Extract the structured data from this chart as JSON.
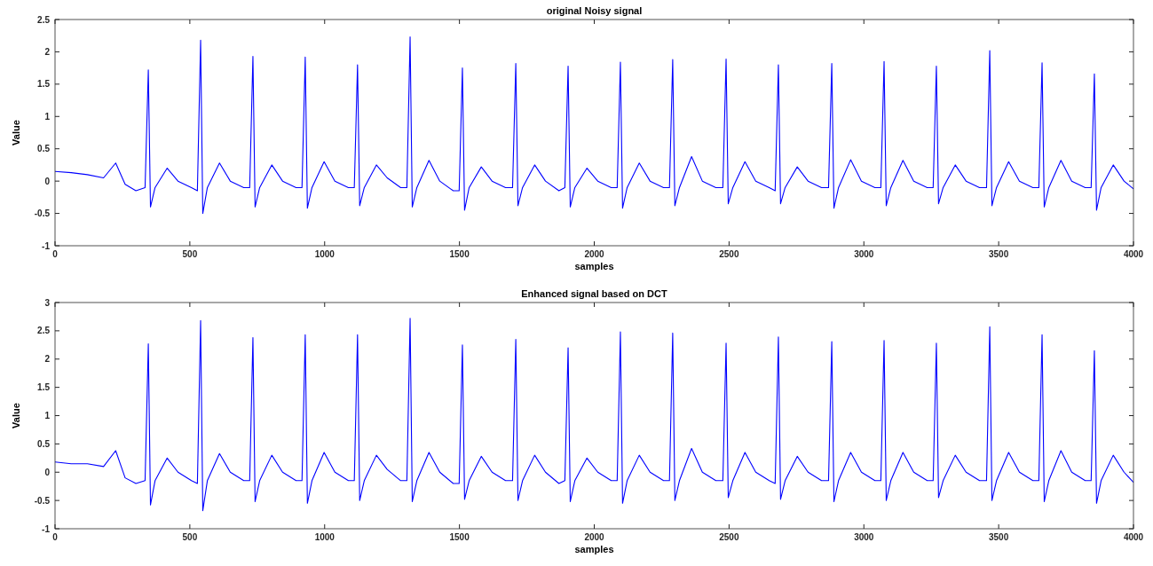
{
  "chart_data": [
    {
      "type": "line",
      "title": "original Noisy signal",
      "xlabel": "samples",
      "ylabel": "Value",
      "xlim": [
        0,
        4000
      ],
      "xticks": [
        0,
        500,
        1000,
        1500,
        2000,
        2500,
        3000,
        3500,
        4000
      ],
      "ylim": [
        -1,
        2.5
      ],
      "yticks": [
        -1,
        -0.5,
        0,
        0.5,
        1,
        1.5,
        2,
        2.5
      ],
      "grid": false,
      "marker": "none",
      "line_style": "solid",
      "x": [
        0,
        60,
        120,
        180,
        225,
        260,
        300,
        334,
        346,
        354,
        371,
        416,
        456,
        506,
        528,
        540,
        548,
        565,
        610,
        650,
        700,
        722,
        734,
        742,
        759,
        804,
        844,
        894,
        916,
        928,
        936,
        953,
        998,
        1038,
        1088,
        1110,
        1122,
        1130,
        1147,
        1192,
        1232,
        1282,
        1305,
        1317,
        1325,
        1342,
        1387,
        1427,
        1477,
        1499,
        1511,
        1519,
        1536,
        1581,
        1621,
        1671,
        1697,
        1709,
        1717,
        1734,
        1779,
        1819,
        1869,
        1891,
        1903,
        1911,
        1928,
        1973,
        2013,
        2063,
        2085,
        2097,
        2105,
        2122,
        2167,
        2207,
        2257,
        2279,
        2291,
        2299,
        2316,
        2361,
        2401,
        2451,
        2477,
        2489,
        2497,
        2514,
        2559,
        2599,
        2649,
        2671,
        2683,
        2691,
        2708,
        2753,
        2793,
        2843,
        2869,
        2881,
        2889,
        2906,
        2951,
        2991,
        3041,
        3063,
        3075,
        3083,
        3100,
        3145,
        3185,
        3235,
        3257,
        3269,
        3277,
        3294,
        3339,
        3379,
        3429,
        3455,
        3467,
        3475,
        3492,
        3537,
        3577,
        3627,
        3649,
        3661,
        3669,
        3686,
        3731,
        3771,
        3821,
        3843,
        3855,
        3863,
        3880,
        3925,
        3965,
        4000
      ],
      "series": [
        {
          "color": "#0000ff",
          "values": [
            0.15,
            0.13,
            0.1,
            0.05,
            0.28,
            -0.05,
            -0.15,
            -0.1,
            1.72,
            -0.4,
            -0.1,
            0.2,
            0.0,
            -0.1,
            -0.15,
            2.18,
            -0.5,
            -0.1,
            0.28,
            0.0,
            -0.1,
            -0.1,
            1.93,
            -0.4,
            -0.1,
            0.25,
            0.0,
            -0.1,
            -0.1,
            1.92,
            -0.42,
            -0.1,
            0.3,
            0.0,
            -0.1,
            -0.1,
            1.8,
            -0.38,
            -0.1,
            0.25,
            0.05,
            -0.1,
            -0.1,
            2.23,
            -0.4,
            -0.1,
            0.32,
            0.0,
            -0.15,
            -0.15,
            1.75,
            -0.45,
            -0.1,
            0.22,
            0.0,
            -0.1,
            -0.1,
            1.82,
            -0.38,
            -0.1,
            0.25,
            0.0,
            -0.15,
            -0.1,
            1.78,
            -0.4,
            -0.1,
            0.2,
            0.0,
            -0.1,
            -0.1,
            1.84,
            -0.42,
            -0.1,
            0.28,
            0.0,
            -0.1,
            -0.1,
            1.88,
            -0.38,
            -0.1,
            0.38,
            0.0,
            -0.1,
            -0.1,
            1.89,
            -0.35,
            -0.1,
            0.3,
            0.0,
            -0.1,
            -0.15,
            1.8,
            -0.35,
            -0.1,
            0.22,
            0.0,
            -0.1,
            -0.1,
            1.82,
            -0.42,
            -0.1,
            0.33,
            0.0,
            -0.1,
            -0.1,
            1.85,
            -0.38,
            -0.1,
            0.32,
            0.0,
            -0.1,
            -0.1,
            1.78,
            -0.35,
            -0.1,
            0.25,
            0.0,
            -0.1,
            -0.1,
            2.02,
            -0.38,
            -0.1,
            0.3,
            0.0,
            -0.1,
            -0.1,
            1.83,
            -0.4,
            -0.1,
            0.32,
            0.0,
            -0.1,
            -0.1,
            1.66,
            -0.45,
            -0.1,
            0.25,
            0.0,
            -0.12
          ]
        }
      ]
    },
    {
      "type": "line",
      "title": "Enhanced signal based on DCT",
      "xlabel": "samples",
      "ylabel": "Value",
      "xlim": [
        0,
        4000
      ],
      "xticks": [
        0,
        500,
        1000,
        1500,
        2000,
        2500,
        3000,
        3500,
        4000
      ],
      "ylim": [
        -1,
        3
      ],
      "yticks": [
        -1,
        -0.5,
        0,
        0.5,
        1,
        1.5,
        2,
        2.5,
        3
      ],
      "grid": false,
      "marker": "none",
      "line_style": "solid",
      "x": [
        0,
        60,
        120,
        180,
        225,
        260,
        300,
        334,
        346,
        354,
        371,
        416,
        456,
        506,
        528,
        540,
        548,
        565,
        610,
        650,
        700,
        722,
        734,
        742,
        759,
        804,
        844,
        894,
        916,
        928,
        936,
        953,
        998,
        1038,
        1088,
        1110,
        1122,
        1130,
        1147,
        1192,
        1232,
        1282,
        1305,
        1317,
        1325,
        1342,
        1387,
        1427,
        1477,
        1499,
        1511,
        1519,
        1536,
        1581,
        1621,
        1671,
        1697,
        1709,
        1717,
        1734,
        1779,
        1819,
        1869,
        1891,
        1903,
        1911,
        1928,
        1973,
        2013,
        2063,
        2085,
        2097,
        2105,
        2122,
        2167,
        2207,
        2257,
        2279,
        2291,
        2299,
        2316,
        2361,
        2401,
        2451,
        2477,
        2489,
        2497,
        2514,
        2559,
        2599,
        2649,
        2671,
        2683,
        2691,
        2708,
        2753,
        2793,
        2843,
        2869,
        2881,
        2889,
        2906,
        2951,
        2991,
        3041,
        3063,
        3075,
        3083,
        3100,
        3145,
        3185,
        3235,
        3257,
        3269,
        3277,
        3294,
        3339,
        3379,
        3429,
        3455,
        3467,
        3475,
        3492,
        3537,
        3577,
        3627,
        3649,
        3661,
        3669,
        3686,
        3731,
        3771,
        3821,
        3843,
        3855,
        3863,
        3880,
        3925,
        3965,
        4000
      ],
      "series": [
        {
          "color": "#0000ff",
          "values": [
            0.18,
            0.15,
            0.15,
            0.1,
            0.38,
            -0.1,
            -0.2,
            -0.15,
            2.27,
            -0.58,
            -0.15,
            0.25,
            0.0,
            -0.15,
            -0.2,
            2.68,
            -0.68,
            -0.15,
            0.33,
            0.0,
            -0.15,
            -0.15,
            2.38,
            -0.52,
            -0.15,
            0.3,
            0.0,
            -0.15,
            -0.15,
            2.43,
            -0.55,
            -0.15,
            0.35,
            0.0,
            -0.15,
            -0.15,
            2.43,
            -0.5,
            -0.15,
            0.3,
            0.05,
            -0.15,
            -0.15,
            2.72,
            -0.52,
            -0.15,
            0.35,
            0.0,
            -0.2,
            -0.2,
            2.25,
            -0.48,
            -0.15,
            0.28,
            0.0,
            -0.15,
            -0.15,
            2.35,
            -0.5,
            -0.15,
            0.3,
            0.0,
            -0.2,
            -0.15,
            2.2,
            -0.52,
            -0.15,
            0.25,
            0.0,
            -0.15,
            -0.15,
            2.48,
            -0.55,
            -0.15,
            0.3,
            0.0,
            -0.15,
            -0.15,
            2.46,
            -0.5,
            -0.15,
            0.42,
            0.0,
            -0.15,
            -0.15,
            2.28,
            -0.45,
            -0.15,
            0.35,
            0.0,
            -0.15,
            -0.2,
            2.39,
            -0.48,
            -0.15,
            0.28,
            0.0,
            -0.15,
            -0.15,
            2.31,
            -0.52,
            -0.15,
            0.35,
            0.0,
            -0.15,
            -0.15,
            2.33,
            -0.5,
            -0.15,
            0.35,
            0.0,
            -0.15,
            -0.15,
            2.28,
            -0.45,
            -0.15,
            0.3,
            0.0,
            -0.15,
            -0.15,
            2.57,
            -0.5,
            -0.15,
            0.35,
            0.0,
            -0.15,
            -0.15,
            2.43,
            -0.52,
            -0.15,
            0.38,
            0.0,
            -0.15,
            -0.15,
            2.15,
            -0.55,
            -0.15,
            0.3,
            0.0,
            -0.18
          ]
        }
      ]
    }
  ]
}
